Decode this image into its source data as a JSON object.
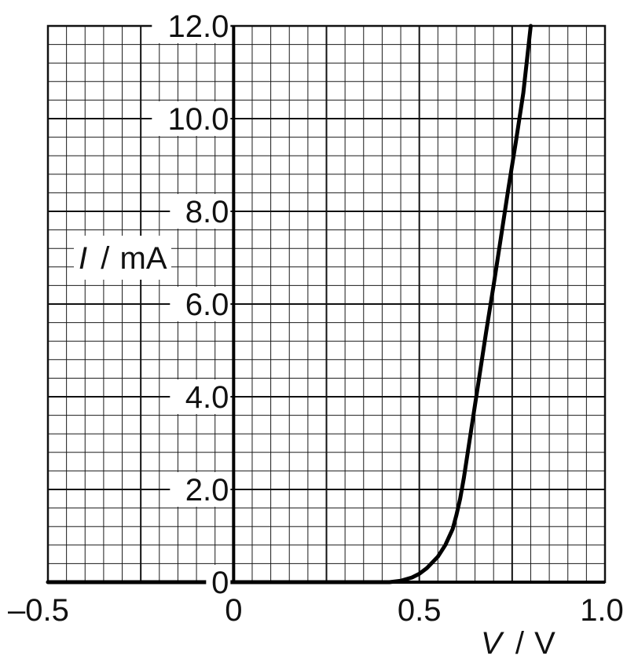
{
  "chart_data": {
    "type": "line",
    "title": "",
    "xlabel_symbol": "V",
    "xlabel_unit": "V",
    "ylabel_symbol": "I",
    "ylabel_unit": "mA",
    "xlim": [
      -0.5,
      1.0
    ],
    "ylim": [
      0,
      12.0
    ],
    "grid": true,
    "x_ticks": [
      -0.5,
      0,
      0.5,
      1.0
    ],
    "x_tick_labels": [
      "–0.5",
      "0",
      "0.5",
      "1.0"
    ],
    "y_ticks": [
      0,
      2.0,
      4.0,
      6.0,
      8.0,
      10.0,
      12.0
    ],
    "y_tick_labels": [
      "0",
      "2.0",
      "4.0",
      "6.0",
      "8.0",
      "10.0",
      "12.0"
    ],
    "series": [
      {
        "x": [
          -0.5,
          0.0,
          0.42,
          0.45,
          0.48,
          0.5,
          0.52,
          0.55,
          0.57,
          0.59,
          0.6,
          0.61,
          0.62,
          0.64,
          0.66,
          0.68,
          0.7,
          0.72,
          0.74,
          0.76,
          0.78,
          0.8
        ],
        "y": [
          0,
          0,
          0,
          0.03,
          0.1,
          0.18,
          0.3,
          0.55,
          0.8,
          1.15,
          1.45,
          1.8,
          2.25,
          3.3,
          4.35,
          5.4,
          6.4,
          7.45,
          8.5,
          9.5,
          10.55,
          12.0
        ]
      }
    ]
  }
}
